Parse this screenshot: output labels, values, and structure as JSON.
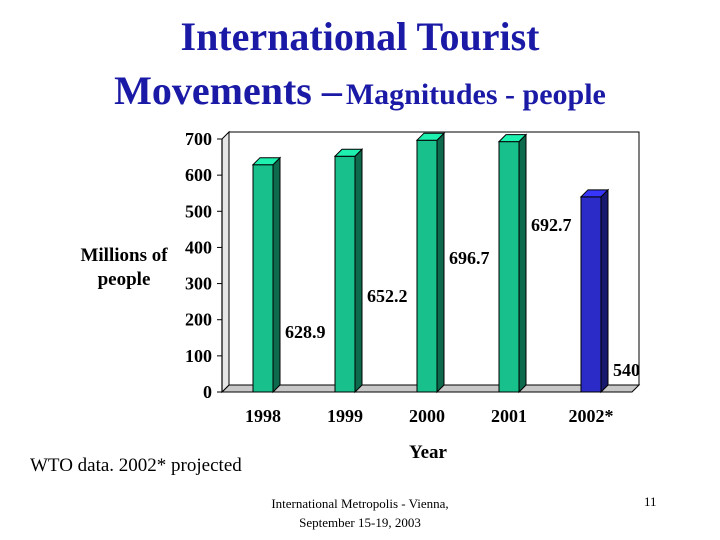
{
  "slide": {
    "title_line1": "International Tourist",
    "title_line2_main": "Movements –",
    "title_line2_sub": "Magnitudes - people",
    "note": "WTO data.  2002* projected",
    "footer_line1": "International Metropolis - Vienna,",
    "footer_line2": "September 15-19, 2003",
    "page_number": "11"
  },
  "chart_data": {
    "type": "bar",
    "categories": [
      "1998",
      "1999",
      "2000",
      "2001",
      "2002*"
    ],
    "values": [
      628.9,
      652.2,
      696.7,
      692.7,
      540
    ],
    "data_labels": [
      "628.9",
      "652.2",
      "696.7",
      "692.7",
      "540"
    ],
    "xlabel": "Year",
    "ylabel": "Millions of people",
    "ylim": [
      0,
      700
    ],
    "yticks": [
      0,
      100,
      200,
      300,
      400,
      500,
      600,
      700
    ],
    "grid": false,
    "legend": "none",
    "colors": {
      "actual": "#18c08c",
      "projected": "#2b2bc8"
    }
  }
}
